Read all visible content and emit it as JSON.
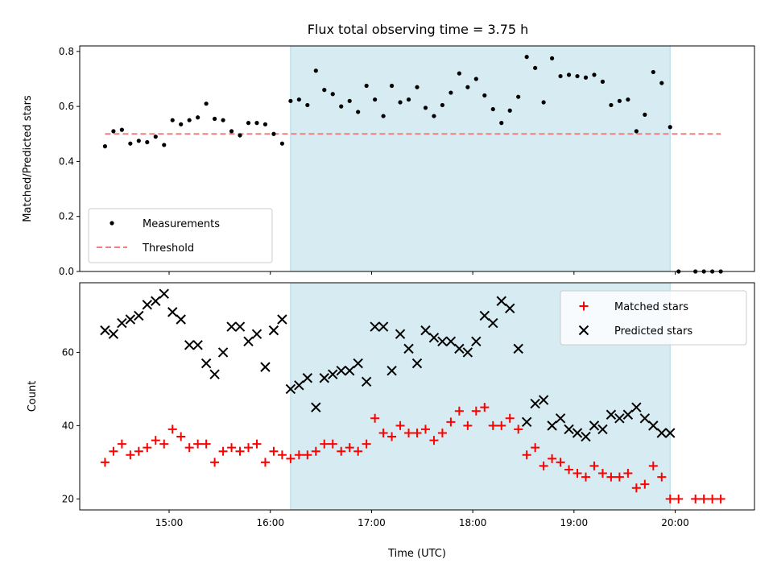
{
  "title": "Flux total observing time = 3.75 h",
  "colors": {
    "shade": "#add8e6",
    "threshold": "#f08080",
    "matched": "#ff0000",
    "predicted": "#000000",
    "measurement": "#000000"
  },
  "chart_data": [
    {
      "type": "scatter",
      "ylabel": "Matched/Predicted stars",
      "ylim": [
        0,
        0.82
      ],
      "yticks": [
        "0.0",
        "0.2",
        "0.4",
        "0.6",
        "0.8"
      ],
      "xlim": [
        "14:07",
        "20:47"
      ],
      "shaded_interval": [
        "16:12",
        "19:57"
      ],
      "threshold": 0.5,
      "threshold_x": [
        "14:22",
        "20:27"
      ],
      "legend": {
        "placement": "lower-left",
        "measurements_label": "Measurements",
        "threshold_label": "Threshold"
      },
      "series": [
        {
          "name": "Measurements",
          "x": [
            "14:22",
            "14:27",
            "14:32",
            "14:37",
            "14:42",
            "14:47",
            "14:52",
            "14:57",
            "15:02",
            "15:07",
            "15:12",
            "15:17",
            "15:22",
            "15:27",
            "15:32",
            "15:37",
            "15:42",
            "15:47",
            "15:52",
            "15:57",
            "16:02",
            "16:07",
            "16:12",
            "16:17",
            "16:22",
            "16:27",
            "16:32",
            "16:37",
            "16:42",
            "16:47",
            "16:52",
            "16:57",
            "17:02",
            "17:07",
            "17:12",
            "17:17",
            "17:22",
            "17:27",
            "17:32",
            "17:37",
            "17:42",
            "17:47",
            "17:52",
            "17:57",
            "18:02",
            "18:07",
            "18:12",
            "18:17",
            "18:22",
            "18:27",
            "18:32",
            "18:37",
            "18:42",
            "18:47",
            "18:52",
            "18:57",
            "19:02",
            "19:07",
            "19:12",
            "19:17",
            "19:22",
            "19:27",
            "19:32",
            "19:37",
            "19:42",
            "19:47",
            "19:52",
            "19:57",
            "20:02",
            "20:12",
            "20:17",
            "20:22",
            "20:27"
          ],
          "y": [
            0.455,
            0.51,
            0.515,
            0.465,
            0.475,
            0.47,
            0.49,
            0.46,
            0.55,
            0.535,
            0.55,
            0.56,
            0.61,
            0.555,
            0.55,
            0.51,
            0.495,
            0.54,
            0.54,
            0.535,
            0.5,
            0.465,
            0.62,
            0.625,
            0.605,
            0.73,
            0.66,
            0.645,
            0.6,
            0.62,
            0.58,
            0.675,
            0.625,
            0.565,
            0.675,
            0.615,
            0.625,
            0.67,
            0.595,
            0.565,
            0.605,
            0.65,
            0.72,
            0.67,
            0.7,
            0.64,
            0.59,
            0.54,
            0.585,
            0.635,
            0.78,
            0.74,
            0.615,
            0.775,
            0.71,
            0.715,
            0.71,
            0.705,
            0.715,
            0.69,
            0.605,
            0.62,
            0.625,
            0.51,
            0.57,
            0.725,
            0.685,
            0.525,
            0,
            0,
            0,
            0,
            0
          ]
        }
      ]
    },
    {
      "type": "scatter",
      "ylabel": "Count",
      "xlabel": "Time (UTC)",
      "ylim": [
        17,
        79
      ],
      "yticks": [
        "20",
        "40",
        "60"
      ],
      "xticks": [
        "15:00",
        "16:00",
        "17:00",
        "18:00",
        "19:00",
        "20:00"
      ],
      "xlim": [
        "14:07",
        "20:47"
      ],
      "shaded_interval": [
        "16:12",
        "19:57"
      ],
      "legend": {
        "placement": "top-right"
      },
      "series": [
        {
          "name": "Matched stars",
          "marker": "+",
          "x": [
            "14:22",
            "14:27",
            "14:32",
            "14:37",
            "14:42",
            "14:47",
            "14:52",
            "14:57",
            "15:02",
            "15:07",
            "15:12",
            "15:17",
            "15:22",
            "15:27",
            "15:32",
            "15:37",
            "15:42",
            "15:47",
            "15:52",
            "15:57",
            "16:02",
            "16:07",
            "16:12",
            "16:17",
            "16:22",
            "16:27",
            "16:32",
            "16:37",
            "16:42",
            "16:47",
            "16:52",
            "16:57",
            "17:02",
            "17:07",
            "17:12",
            "17:17",
            "17:22",
            "17:27",
            "17:32",
            "17:37",
            "17:42",
            "17:47",
            "17:52",
            "17:57",
            "18:02",
            "18:07",
            "18:12",
            "18:17",
            "18:22",
            "18:27",
            "18:32",
            "18:37",
            "18:42",
            "18:47",
            "18:52",
            "18:57",
            "19:02",
            "19:07",
            "19:12",
            "19:17",
            "19:22",
            "19:27",
            "19:32",
            "19:37",
            "19:42",
            "19:47",
            "19:52",
            "19:57",
            "20:02",
            "20:12",
            "20:17",
            "20:22",
            "20:27"
          ],
          "y": [
            30,
            33,
            35,
            32,
            33,
            34,
            36,
            35,
            39,
            37,
            34,
            35,
            35,
            30,
            33,
            34,
            33,
            34,
            35,
            30,
            33,
            32,
            31,
            32,
            32,
            33,
            35,
            35,
            33,
            34,
            33,
            35,
            42,
            38,
            37,
            40,
            38,
            38,
            39,
            36,
            38,
            41,
            44,
            40,
            44,
            45,
            40,
            40,
            42,
            39,
            32,
            34,
            29,
            31,
            30,
            28,
            27,
            26,
            29,
            27,
            26,
            26,
            27,
            23,
            24,
            29,
            26,
            20,
            20,
            20,
            20,
            20,
            20
          ]
        },
        {
          "name": "Predicted stars",
          "marker": "x",
          "x": [
            "14:22",
            "14:27",
            "14:32",
            "14:37",
            "14:42",
            "14:47",
            "14:52",
            "14:57",
            "15:02",
            "15:07",
            "15:12",
            "15:17",
            "15:22",
            "15:27",
            "15:32",
            "15:37",
            "15:42",
            "15:47",
            "15:52",
            "15:57",
            "16:02",
            "16:07",
            "16:12",
            "16:17",
            "16:22",
            "16:27",
            "16:32",
            "16:37",
            "16:42",
            "16:47",
            "16:52",
            "16:57",
            "17:02",
            "17:07",
            "17:12",
            "17:17",
            "17:22",
            "17:27",
            "17:32",
            "17:37",
            "17:42",
            "17:47",
            "17:52",
            "17:57",
            "18:02",
            "18:07",
            "18:12",
            "18:17",
            "18:22",
            "18:27",
            "18:32",
            "18:37",
            "18:42",
            "18:47",
            "18:52",
            "18:57",
            "19:02",
            "19:07",
            "19:12",
            "19:17",
            "19:22",
            "19:27",
            "19:32",
            "19:37",
            "19:42",
            "19:47",
            "19:52",
            "19:57"
          ],
          "y": [
            66,
            65,
            68,
            69,
            70,
            73,
            74,
            76,
            71,
            69,
            62,
            62,
            57,
            54,
            60,
            67,
            67,
            63,
            65,
            56,
            66,
            69,
            50,
            51,
            53,
            45,
            53,
            54,
            55,
            55,
            57,
            52,
            67,
            67,
            55,
            65,
            61,
            57,
            66,
            64,
            63,
            63,
            61,
            60,
            63,
            70,
            68,
            74,
            72,
            61,
            41,
            46,
            47,
            40,
            42,
            39,
            38,
            37,
            40,
            39,
            43,
            42,
            43,
            45,
            42,
            40,
            38,
            38
          ]
        }
      ]
    }
  ]
}
